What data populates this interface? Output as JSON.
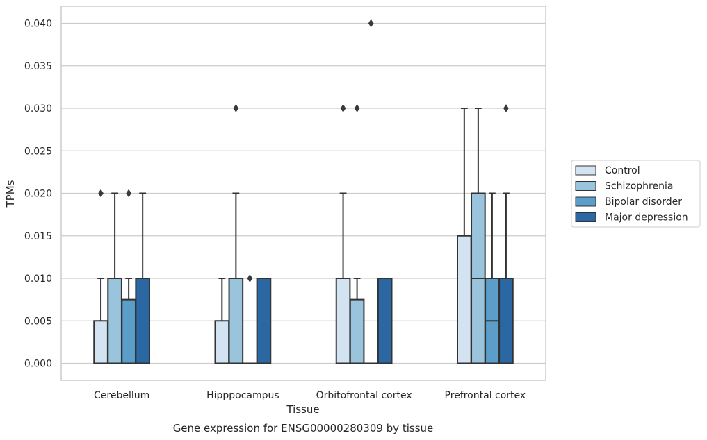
{
  "chart_data": {
    "type": "box",
    "title": "",
    "xlabel": "Tissue",
    "ylabel": "TPMs",
    "caption": "Gene expression for ENSG00000280309 by tissue",
    "ylim": [
      -0.002,
      0.042
    ],
    "yticks": [
      "0.000",
      "0.005",
      "0.010",
      "0.015",
      "0.020",
      "0.025",
      "0.030",
      "0.035",
      "0.040"
    ],
    "grid": "horizontal",
    "legend_position": "right",
    "categories": [
      "Cerebellum",
      "Hipppocampus",
      "Orbitofrontal cortex",
      "Prefrontal cortex"
    ],
    "series": [
      {
        "name": "Control",
        "color": "#d4e3f2",
        "boxes": [
          {
            "q1": 0.0,
            "median": 0.0,
            "q3": 0.005,
            "whisker_low": 0.0,
            "whisker_high": 0.01,
            "outliers": [
              0.02
            ]
          },
          {
            "q1": 0.0,
            "median": 0.0,
            "q3": 0.005,
            "whisker_low": 0.0,
            "whisker_high": 0.01,
            "outliers": []
          },
          {
            "q1": 0.0,
            "median": 0.0,
            "q3": 0.01,
            "whisker_low": 0.0,
            "whisker_high": 0.02,
            "outliers": [
              0.03
            ]
          },
          {
            "q1": 0.0,
            "median": 0.0,
            "q3": 0.015,
            "whisker_low": 0.0,
            "whisker_high": 0.03,
            "outliers": []
          }
        ]
      },
      {
        "name": "Schizophrenia",
        "color": "#9ac3dc",
        "boxes": [
          {
            "q1": 0.0,
            "median": 0.0,
            "q3": 0.01,
            "whisker_low": 0.0,
            "whisker_high": 0.02,
            "outliers": []
          },
          {
            "q1": 0.0,
            "median": 0.0,
            "q3": 0.01,
            "whisker_low": 0.0,
            "whisker_high": 0.02,
            "outliers": [
              0.03
            ]
          },
          {
            "q1": 0.0,
            "median": 0.0,
            "q3": 0.0075,
            "whisker_low": 0.0,
            "whisker_high": 0.01,
            "outliers": [
              0.03
            ]
          },
          {
            "q1": 0.0,
            "median": 0.01,
            "q3": 0.02,
            "whisker_low": 0.0,
            "whisker_high": 0.03,
            "outliers": []
          }
        ]
      },
      {
        "name": "Bipolar disorder",
        "color": "#5a9ec9",
        "boxes": [
          {
            "q1": 0.0,
            "median": 0.0,
            "q3": 0.0075,
            "whisker_low": 0.0,
            "whisker_high": 0.01,
            "outliers": [
              0.02
            ]
          },
          {
            "q1": 0.0,
            "median": 0.0,
            "q3": 0.0,
            "whisker_low": 0.0,
            "whisker_high": 0.0,
            "outliers": [
              0.01
            ]
          },
          {
            "q1": 0.0,
            "median": 0.0,
            "q3": 0.0,
            "whisker_low": 0.0,
            "whisker_high": 0.0,
            "outliers": [
              0.04
            ]
          },
          {
            "q1": 0.0,
            "median": 0.005,
            "q3": 0.01,
            "whisker_low": 0.0,
            "whisker_high": 0.02,
            "outliers": []
          }
        ]
      },
      {
        "name": "Major depression",
        "color": "#2a67a3",
        "boxes": [
          {
            "q1": 0.0,
            "median": 0.0,
            "q3": 0.01,
            "whisker_low": 0.0,
            "whisker_high": 0.02,
            "outliers": []
          },
          {
            "q1": 0.0,
            "median": 0.0,
            "q3": 0.01,
            "whisker_low": 0.0,
            "whisker_high": 0.01,
            "outliers": []
          },
          {
            "q1": 0.0,
            "median": 0.0,
            "q3": 0.01,
            "whisker_low": 0.0,
            "whisker_high": 0.01,
            "outliers": []
          },
          {
            "q1": 0.0,
            "median": 0.0,
            "q3": 0.01,
            "whisker_low": 0.0,
            "whisker_high": 0.02,
            "outliers": [
              0.03
            ]
          }
        ]
      }
    ]
  }
}
